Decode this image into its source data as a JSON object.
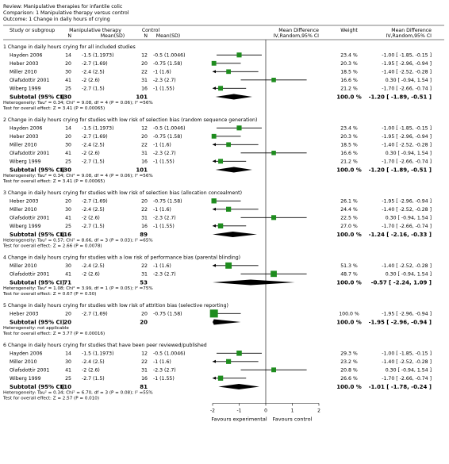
{
  "header": {
    "review": "Review:  Manipulative therapies for infantile colic",
    "comparison": "Comparison:  1 Manipulative therapy versus control",
    "outcome": "Outcome:  1 Change in daily hours of crying"
  },
  "columns": {
    "study": "Study or subgroup",
    "exp_title": "Manipulative therapy",
    "exp_n": "N",
    "exp_mean": "Mean(SD)",
    "ctrl_title": "Control",
    "ctrl_n": "N",
    "ctrl_mean": "Mean(SD)",
    "md_title": "Mean Difference",
    "md_sub": "IV,Random,95% CI",
    "weight": "Weight",
    "md2_title": "Mean Difference",
    "md2_sub": "IV,Random,95% CI"
  },
  "colors": {
    "marker": "#1e8c1e",
    "diamond": "#000000",
    "text": "#000000"
  },
  "chart_data": {
    "type": "forest",
    "xlim": [
      -2,
      2
    ],
    "xticks": [
      "-2",
      "-1",
      "0",
      "1",
      "2"
    ],
    "xlabel_left": "Favours experimental",
    "xlabel_right": "Favours control",
    "subgroups": [
      {
        "title": "1 Change in daily hours crying for all included studies",
        "studies": [
          {
            "name": "Hayden 2006",
            "n1": "14",
            "m1": "-1.5 (1.1973)",
            "n2": "12",
            "m2": "-0.5 (1.0046)",
            "weight": "23.4 %",
            "ci": "-1.00 [ -1.85, -0.15 ]",
            "md": -1.0,
            "lo": -1.85,
            "hi": -0.15,
            "w": 23.4
          },
          {
            "name": "Heber 2003",
            "n1": "20",
            "m1": "-2.7 (1.69)",
            "n2": "20",
            "m2": "-0.75 (1.58)",
            "weight": "20.3 %",
            "ci": "-1.95 [ -2.96, -0.94 ]",
            "md": -1.95,
            "lo": -2.96,
            "hi": -0.94,
            "w": 20.3
          },
          {
            "name": "Miller 2010",
            "n1": "30",
            "m1": "-2.4 (2.5)",
            "n2": "22",
            "m2": "-1 (1.6)",
            "weight": "18.5 %",
            "ci": "-1.40 [ -2.52, -0.28 ]",
            "md": -1.4,
            "lo": -2.52,
            "hi": -0.28,
            "w": 18.5
          },
          {
            "name": "Olafsdottir 2001",
            "n1": "41",
            "m1": "-2 (2.6)",
            "n2": "31",
            "m2": "-2.3 (2.7)",
            "weight": "16.6 %",
            "ci": "0.30 [ -0.94, 1.54 ]",
            "md": 0.3,
            "lo": -0.94,
            "hi": 1.54,
            "w": 16.6
          },
          {
            "name": "Wiberg 1999",
            "n1": "25",
            "m1": "-2.7 (1.5)",
            "n2": "16",
            "m2": "-1 (1.55)",
            "weight": "21.2 %",
            "ci": "-1.70 [ -2.66, -0.74 ]",
            "md": -1.7,
            "lo": -2.66,
            "hi": -0.74,
            "w": 21.2
          }
        ],
        "subtotal": {
          "label": "Subtotal (95% CI)",
          "n1": "130",
          "n2": "101",
          "weight": "100.0 %",
          "ci": "-1.20 [ -1.89, -0.51 ]",
          "md": -1.2,
          "lo": -1.89,
          "hi": -0.51
        },
        "heterogeneity": "Heterogeneity: Tau² = 0.34; Chi² = 9.08, df = 4 (P = 0.06); I² =56%",
        "overall": "Test for overall effect: Z = 3.41 (P = 0.00065)"
      },
      {
        "title": "2 Change in daily hours crying for studies with low risk of selection bias (random sequence generation)",
        "studies": [
          {
            "name": "Hayden 2006",
            "n1": "14",
            "m1": "-1.5 (1.1973)",
            "n2": "12",
            "m2": "-0.5 (1.0046)",
            "weight": "23.4 %",
            "ci": "-1.00 [ -1.85, -0.15 ]",
            "md": -1.0,
            "lo": -1.85,
            "hi": -0.15,
            "w": 23.4
          },
          {
            "name": "Heber 2003",
            "n1": "20",
            "m1": "-2.7 (1.69)",
            "n2": "20",
            "m2": "-0.75 (1.58)",
            "weight": "20.3 %",
            "ci": "-1.95 [ -2.96, -0.94 ]",
            "md": -1.95,
            "lo": -2.96,
            "hi": -0.94,
            "w": 20.3
          },
          {
            "name": "Miller 2010",
            "n1": "30",
            "m1": "-2.4 (2.5)",
            "n2": "22",
            "m2": "-1 (1.6)",
            "weight": "18.5 %",
            "ci": "-1.40 [ -2.52, -0.28 ]",
            "md": -1.4,
            "lo": -2.52,
            "hi": -0.28,
            "w": 18.5
          },
          {
            "name": "Olafsdottir 2001",
            "n1": "41",
            "m1": "-2 (2.6)",
            "n2": "31",
            "m2": "-2.3 (2.7)",
            "weight": "16.6 %",
            "ci": "0.30 [ -0.94, 1.54 ]",
            "md": 0.3,
            "lo": -0.94,
            "hi": 1.54,
            "w": 16.6
          },
          {
            "name": "Wiberg 1999",
            "n1": "25",
            "m1": "-2.7 (1.5)",
            "n2": "16",
            "m2": "-1 (1.55)",
            "weight": "21.2 %",
            "ci": "-1.70 [ -2.66, -0.74 ]",
            "md": -1.7,
            "lo": -2.66,
            "hi": -0.74,
            "w": 21.2
          }
        ],
        "subtotal": {
          "label": "Subtotal (95% CI)",
          "n1": "130",
          "n2": "101",
          "weight": "100.0 %",
          "ci": "-1.20 [ -1.89, -0.51 ]",
          "md": -1.2,
          "lo": -1.89,
          "hi": -0.51
        },
        "heterogeneity": "Heterogeneity: Tau² = 0.34; Chi² = 9.08, df = 4 (P = 0.06); I² =56%",
        "overall": "Test for overall effect: Z = 3.41 (P = 0.00065)"
      },
      {
        "title": "3 Change in daily hours crying for studies with low risk of selection bias (allocation concealment)",
        "studies": [
          {
            "name": "Heber 2003",
            "n1": "20",
            "m1": "-2.7 (1.69)",
            "n2": "20",
            "m2": "-0.75 (1.58)",
            "weight": "26.1 %",
            "ci": "-1.95 [ -2.96, -0.94 ]",
            "md": -1.95,
            "lo": -2.96,
            "hi": -0.94,
            "w": 26.1
          },
          {
            "name": "Miller 2010",
            "n1": "30",
            "m1": "-2.4 (2.5)",
            "n2": "22",
            "m2": "-1 (1.6)",
            "weight": "24.4 %",
            "ci": "-1.40 [ -2.52, -0.28 ]",
            "md": -1.4,
            "lo": -2.52,
            "hi": -0.28,
            "w": 24.4
          },
          {
            "name": "Olafsdottir 2001",
            "n1": "41",
            "m1": "-2 (2.6)",
            "n2": "31",
            "m2": "-2.3 (2.7)",
            "weight": "22.5 %",
            "ci": "0.30 [ -0.94, 1.54 ]",
            "md": 0.3,
            "lo": -0.94,
            "hi": 1.54,
            "w": 22.5
          },
          {
            "name": "Wiberg 1999",
            "n1": "25",
            "m1": "-2.7 (1.5)",
            "n2": "16",
            "m2": "-1 (1.55)",
            "weight": "27.0 %",
            "ci": "-1.70 [ -2.66, -0.74 ]",
            "md": -1.7,
            "lo": -2.66,
            "hi": -0.74,
            "w": 27.0
          }
        ],
        "subtotal": {
          "label": "Subtotal (95% CI)",
          "n1": "116",
          "n2": "89",
          "weight": "100.0 %",
          "ci": "-1.24 [ -2.16, -0.33 ]",
          "md": -1.24,
          "lo": -2.16,
          "hi": -0.33
        },
        "heterogeneity": "Heterogeneity: Tau² = 0.57; Chi² = 8.66, df = 3 (P = 0.03); I² =65%",
        "overall": "Test for overall effect: Z = 2.66 (P = 0.0078)"
      },
      {
        "title": "4 Change in daily hours crying for studies with a low risk of performance bias (parental blinding)",
        "studies": [
          {
            "name": "Miller 2010",
            "n1": "30",
            "m1": "-2.4 (2.5)",
            "n2": "22",
            "m2": "-1 (1.6)",
            "weight": "51.3 %",
            "ci": "-1.40 [ -2.52, -0.28 ]",
            "md": -1.4,
            "lo": -2.52,
            "hi": -0.28,
            "w": 51.3
          },
          {
            "name": "Olafsdottir 2001",
            "n1": "41",
            "m1": "-2 (2.6)",
            "n2": "31",
            "m2": "-2.3 (2.7)",
            "weight": "48.7 %",
            "ci": "0.30 [ -0.94, 1.54 ]",
            "md": 0.3,
            "lo": -0.94,
            "hi": 1.54,
            "w": 48.7
          }
        ],
        "subtotal": {
          "label": "Subtotal (95% CI)",
          "n1": "71",
          "n2": "53",
          "weight": "100.0 %",
          "ci": "-0.57 [ -2.24, 1.09 ]",
          "md": -0.57,
          "lo": -2.24,
          "hi": 1.09
        },
        "heterogeneity": "Heterogeneity: Tau² = 1.08; Chi² = 3.99, df = 1 (P = 0.05); I² =75%",
        "overall": "Test for overall effect: Z = 0.67 (P = 0.50)"
      },
      {
        "title": "5 Change in daily hours crying for studies with low risk of attrition bias (selective reporting)",
        "studies": [
          {
            "name": "Heber 2003",
            "n1": "20",
            "m1": "-2.7 (1.69)",
            "n2": "20",
            "m2": "-0.75 (1.58)",
            "weight": "100.0 %",
            "ci": "-1.95 [ -2.96, -0.94 ]",
            "md": -1.95,
            "lo": -2.96,
            "hi": -0.94,
            "w": 100.0
          }
        ],
        "subtotal": {
          "label": "Subtotal (95% CI)",
          "n1": "20",
          "n2": "20",
          "weight": "100.0 %",
          "ci": "-1.95 [ -2.96, -0.94 ]",
          "md": -1.95,
          "lo": -2.96,
          "hi": -0.94
        },
        "heterogeneity": "Heterogeneity: not applicable",
        "overall": "Test for overall effect: Z = 3.77 (P = 0.00016)"
      },
      {
        "title": "6 Change in daily hours crying for studies that have been peer reviewed/published",
        "studies": [
          {
            "name": "Hayden 2006",
            "n1": "14",
            "m1": "-1.5 (1.1973)",
            "n2": "12",
            "m2": "-0.5 (1.0046)",
            "weight": "29.3 %",
            "ci": "-1.00 [ -1.85, -0.15 ]",
            "md": -1.0,
            "lo": -1.85,
            "hi": -0.15,
            "w": 29.3
          },
          {
            "name": "Miller 2010",
            "n1": "30",
            "m1": "-2.4 (2.5)",
            "n2": "22",
            "m2": "-1 (1.6)",
            "weight": "23.2 %",
            "ci": "-1.40 [ -2.52, -0.28 ]",
            "md": -1.4,
            "lo": -2.52,
            "hi": -0.28,
            "w": 23.2
          },
          {
            "name": "Olafsdottir 2001",
            "n1": "41",
            "m1": "-2 (2.6)",
            "n2": "31",
            "m2": "-2.3 (2.7)",
            "weight": "20.8 %",
            "ci": "0.30 [ -0.94, 1.54 ]",
            "md": 0.3,
            "lo": -0.94,
            "hi": 1.54,
            "w": 20.8
          },
          {
            "name": "Wiberg 1999",
            "n1": "25",
            "m1": "-2.7 (1.5)",
            "n2": "16",
            "m2": "-1 (1.55)",
            "weight": "26.6 %",
            "ci": "-1.70 [ -2.66, -0.74 ]",
            "md": -1.7,
            "lo": -2.66,
            "hi": -0.74,
            "w": 26.6
          }
        ],
        "subtotal": {
          "label": "Subtotal (95% CI)",
          "n1": "110",
          "n2": "81",
          "weight": "100.0 %",
          "ci": "-1.01 [ -1.78, -0.24 ]",
          "md": -1.01,
          "lo": -1.78,
          "hi": -0.24
        },
        "heterogeneity": "Heterogeneity: Tau² = 0.34; Chi² = 6.70, df = 3 (P = 0.08); I² =55%",
        "overall": "Test for overall effect: Z = 2.57 (P = 0.010)"
      }
    ]
  }
}
